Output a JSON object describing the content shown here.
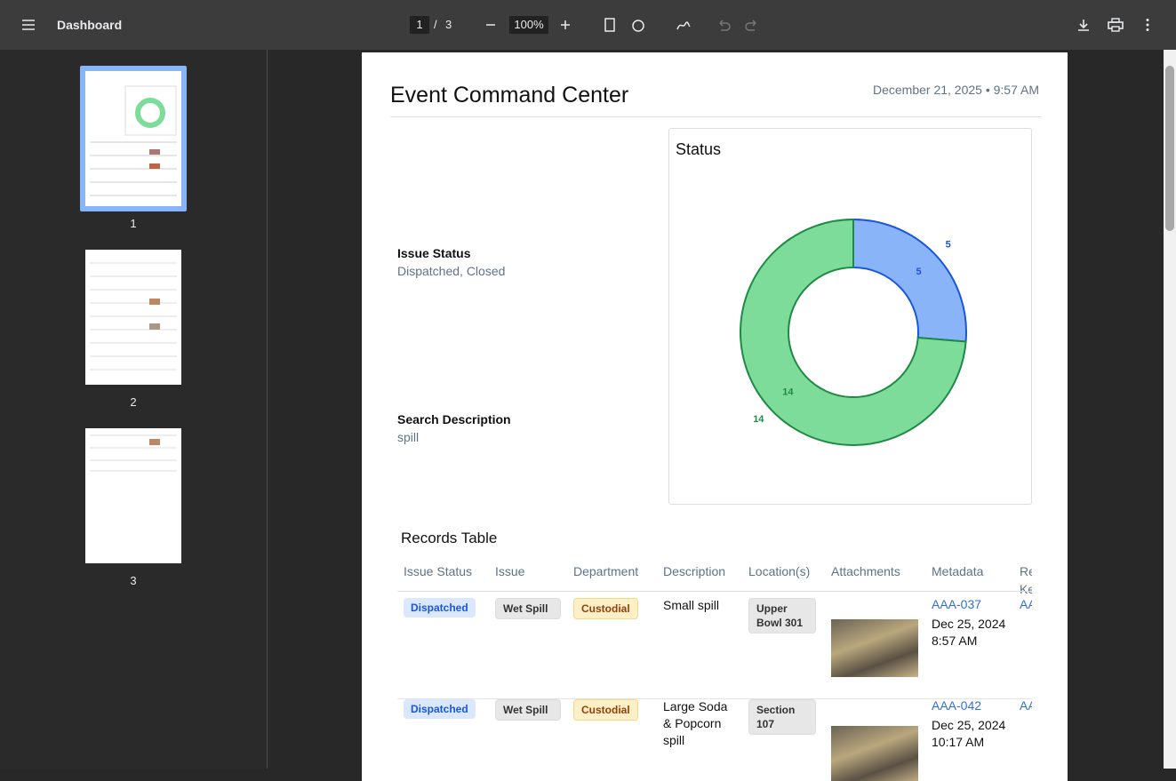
{
  "toolbar": {
    "title": "Dashboard",
    "page": "1",
    "page_separator": "/",
    "page_count": "3",
    "zoom": "100%"
  },
  "thumbnails": [
    "1",
    "2",
    "3"
  ],
  "document": {
    "title": "Event Command Center",
    "timestamp": "December 21, 2025 • 9:57 AM",
    "filters": [
      {
        "label": "Issue Status",
        "value": "Dispatched, Closed"
      },
      {
        "label": "Search Description",
        "value": "spill"
      }
    ],
    "chart": {
      "type": "donut",
      "title": "Status",
      "values": [
        5,
        14
      ],
      "colors": [
        "#8ab4f8",
        "#7ddc9a"
      ],
      "stroke_colors": [
        "#1a56db",
        "#1e8a44"
      ]
    },
    "table": {
      "title": "Records Table",
      "columns": [
        "Issue Status",
        "Issue",
        "Department",
        "Description",
        "Location(s)",
        "Attachments",
        "Metadata",
        "Re Ke"
      ],
      "rows": [
        [
          "Dispatched",
          "Wet Spill",
          "Custodial",
          "Small spill",
          "Upper Bowl 301",
          "AAA-037",
          "Dec 25, 2024",
          "8:57 AM",
          "AA"
        ],
        [
          "Dispatched",
          "Wet Spill",
          "Custodial",
          "Large Soda & Popcorn spill",
          "Section 107",
          "AAA-042",
          "Dec 25, 2024",
          "10:17 AM",
          "AA"
        ]
      ]
    }
  }
}
